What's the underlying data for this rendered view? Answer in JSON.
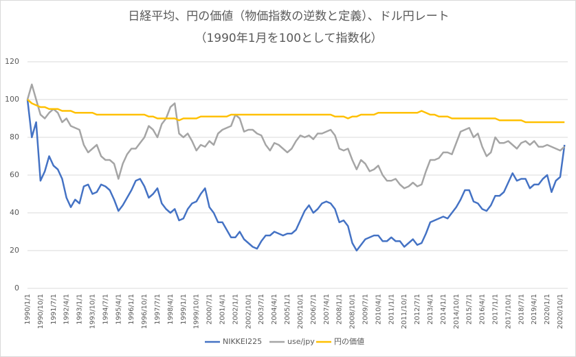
{
  "chart_data": {
    "type": "line",
    "title": "日経平均、円の価値（物価指数の逆数と定義）、ドル円レート",
    "subtitle": "（1990年1月を100として指数化）",
    "categories": [
      "1990/1/1",
      null,
      null,
      "1990/10/1",
      null,
      null,
      "1991/7/1",
      null,
      null,
      "1992/4/1",
      null,
      null,
      "1993/1/1",
      null,
      null,
      "1993/10/1",
      null,
      null,
      "1994/7/1",
      null,
      null,
      "1995/4/1",
      null,
      null,
      "1996/1/1",
      null,
      null,
      "1996/10/1",
      null,
      null,
      "1997/7/1",
      null,
      null,
      "1998/4/1",
      null,
      null,
      "1999/1/1",
      null,
      null,
      "1999/10/1",
      null,
      null,
      "2000/7/1",
      null,
      null,
      "2001/4/1",
      null,
      null,
      "2002/1/1",
      null,
      null,
      "2002/10/1",
      null,
      null,
      "2003/7/1",
      null,
      null,
      "2004/4/1",
      null,
      null,
      "2005/1/1",
      null,
      null,
      "2005/10/1",
      null,
      null,
      "2006/7/1",
      null,
      null,
      "2007/4/1",
      null,
      null,
      "2008/1/1",
      null,
      null,
      "2008/10/1",
      null,
      null,
      "2009/7/1",
      null,
      null,
      "2010/4/1",
      null,
      null,
      "2011/1/1",
      null,
      null,
      "2011/10/1",
      null,
      null,
      "2012/7/1",
      null,
      null,
      "2013/4/1",
      null,
      null,
      "2014/1/1",
      null,
      null,
      "2014/10/1",
      null,
      null,
      "2015/7/1",
      null,
      null,
      "2016/4/1",
      null,
      null,
      "2017/1/1",
      null,
      null,
      "2017/10/1",
      null,
      null,
      "2018/7/1",
      null,
      null,
      "2019/4/1",
      null,
      null,
      "2020/1/1",
      null,
      null,
      "2020/10/1",
      null
    ],
    "series": [
      {
        "name": "NIKKEI225",
        "color": "#4472c4",
        "values": [
          100,
          80,
          88,
          57,
          62,
          70,
          65,
          63,
          58,
          48,
          43,
          47,
          45,
          54,
          55,
          50,
          51,
          55,
          54,
          52,
          47,
          41,
          44,
          48,
          52,
          57,
          58,
          54,
          48,
          50,
          53,
          45,
          42,
          40,
          42,
          36,
          37,
          42,
          45,
          46,
          50,
          53,
          43,
          40,
          35,
          35,
          31,
          27,
          27,
          30,
          26,
          24,
          22,
          21,
          25,
          28,
          28,
          30,
          29,
          28,
          29,
          29,
          31,
          36,
          41,
          44,
          40,
          42,
          45,
          46,
          45,
          42,
          35,
          36,
          33,
          24,
          20,
          23,
          26,
          27,
          28,
          28,
          25,
          25,
          27,
          25,
          25,
          22,
          24,
          26,
          23,
          24,
          29,
          35,
          36,
          37,
          38,
          37,
          40,
          43,
          47,
          52,
          52,
          46,
          45,
          42,
          41,
          44,
          49,
          49,
          51,
          56,
          61,
          57,
          58,
          58,
          53,
          55,
          55,
          58,
          60,
          51,
          57,
          59,
          76
        ]
      },
      {
        "name": "use/jpy",
        "color": "#a5a5a5",
        "values": [
          100,
          108,
          100,
          92,
          90,
          93,
          95,
          93,
          88,
          90,
          86,
          85,
          84,
          76,
          72,
          74,
          76,
          70,
          68,
          68,
          66,
          58,
          66,
          71,
          74,
          74,
          77,
          80,
          86,
          84,
          80,
          87,
          90,
          96,
          98,
          82,
          80,
          82,
          78,
          73,
          76,
          75,
          78,
          76,
          82,
          84,
          85,
          86,
          92,
          90,
          83,
          84,
          84,
          82,
          81,
          76,
          73,
          77,
          76,
          74,
          72,
          74,
          78,
          81,
          80,
          81,
          79,
          82,
          82,
          83,
          84,
          81,
          74,
          73,
          74,
          68,
          63,
          68,
          66,
          62,
          63,
          65,
          60,
          57,
          57,
          58,
          55,
          53,
          54,
          56,
          54,
          55,
          62,
          68,
          68,
          69,
          72,
          72,
          71,
          77,
          83,
          84,
          85,
          80,
          82,
          75,
          70,
          72,
          80,
          77,
          77,
          78,
          76,
          74,
          77,
          78,
          76,
          78,
          75,
          75,
          76,
          75,
          74,
          73,
          75
        ]
      },
      {
        "name": "円の価値",
        "color": "#ffc000",
        "values": [
          100,
          98,
          97,
          96,
          96,
          95,
          95,
          95,
          94,
          94,
          94,
          93,
          93,
          93,
          93,
          93,
          92,
          92,
          92,
          92,
          92,
          92,
          92,
          92,
          92,
          92,
          92,
          92,
          91,
          91,
          90,
          90,
          90,
          90,
          90,
          89,
          90,
          90,
          90,
          90,
          91,
          91,
          91,
          91,
          91,
          91,
          91,
          92,
          92,
          92,
          92,
          92,
          92,
          92,
          92,
          92,
          92,
          92,
          92,
          92,
          92,
          92,
          92,
          92,
          92,
          92,
          92,
          92,
          92,
          92,
          92,
          91,
          91,
          91,
          90,
          91,
          91,
          92,
          92,
          92,
          92,
          93,
          93,
          93,
          93,
          93,
          93,
          93,
          93,
          93,
          93,
          94,
          93,
          92,
          92,
          91,
          91,
          91,
          90,
          90,
          90,
          90,
          90,
          90,
          90,
          90,
          90,
          90,
          90,
          89,
          89,
          89,
          89,
          89,
          89,
          88,
          88,
          88,
          88,
          88,
          88,
          88,
          88,
          88,
          88
        ]
      }
    ],
    "ylim": [
      0,
      120
    ],
    "yticks": [
      0,
      20,
      40,
      60,
      80,
      100,
      120
    ],
    "grid": true,
    "legend": "bottom"
  }
}
